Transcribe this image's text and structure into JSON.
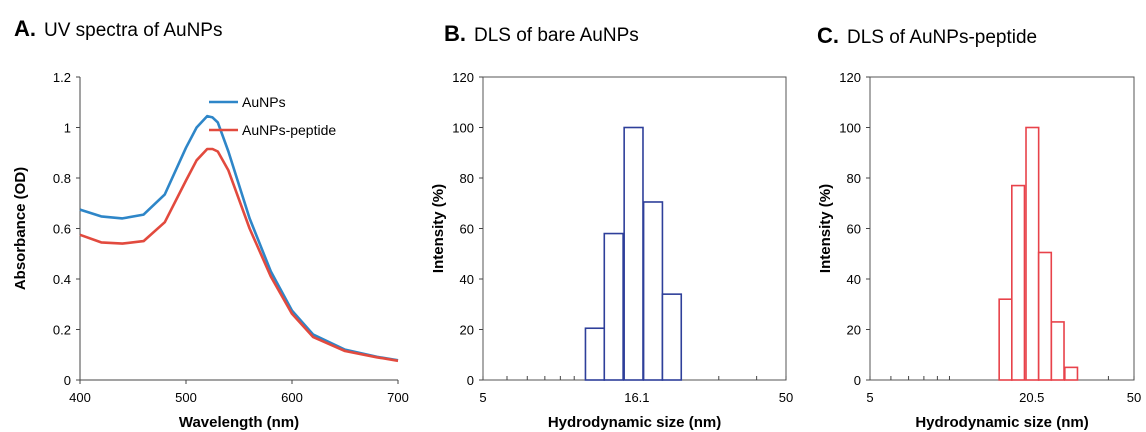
{
  "chart_data": [
    {
      "type": "line",
      "panel_letter": "A.",
      "title": "UV spectra of AuNPs",
      "xlabel": "Wavelength (nm)",
      "ylabel": "Absorbance (OD)",
      "xlim": [
        400,
        700
      ],
      "ylim": [
        0,
        1.2
      ],
      "xticks": [
        400,
        500,
        600,
        700
      ],
      "yticks": [
        0,
        0.2,
        0.4,
        0.6,
        0.8,
        1,
        1.2
      ],
      "grid": false,
      "legend_position": "top-right",
      "series": [
        {
          "name": "AuNPs",
          "color": "#2E86C8",
          "x": [
            400,
            420,
            440,
            460,
            480,
            500,
            510,
            520,
            525,
            530,
            540,
            560,
            580,
            600,
            620,
            650,
            680,
            700
          ],
          "y": [
            0.675,
            0.648,
            0.64,
            0.655,
            0.735,
            0.92,
            1.0,
            1.045,
            1.04,
            1.02,
            0.905,
            0.64,
            0.43,
            0.275,
            0.18,
            0.12,
            0.092,
            0.078
          ]
        },
        {
          "name": "AuNPs-peptide",
          "color": "#E24A3E",
          "x": [
            400,
            420,
            440,
            460,
            480,
            500,
            510,
            520,
            525,
            530,
            540,
            560,
            580,
            600,
            620,
            650,
            680,
            700
          ],
          "y": [
            0.575,
            0.545,
            0.54,
            0.55,
            0.625,
            0.79,
            0.87,
            0.915,
            0.915,
            0.905,
            0.83,
            0.6,
            0.41,
            0.262,
            0.17,
            0.115,
            0.09,
            0.076
          ]
        }
      ]
    },
    {
      "type": "bar",
      "panel_letter": "B.",
      "title": "DLS of bare AuNPs",
      "xlabel": "Hydrodynamic size (nm)",
      "ylabel": "Intensity (%)",
      "xscale": "log",
      "xlim": [
        5,
        50
      ],
      "ylim": [
        0,
        120
      ],
      "xtick_labels": [
        "5",
        "16.1",
        "50"
      ],
      "yticks": [
        0,
        20,
        40,
        60,
        80,
        100,
        120
      ],
      "color": "#2E3F9A",
      "categories": [
        "11.7",
        "13.5",
        "15.7",
        "18.2",
        "21.0"
      ],
      "values": [
        20.5,
        58,
        100,
        70.5,
        34
      ]
    },
    {
      "type": "bar",
      "panel_letter": "C.",
      "title": "DLS of AuNPs-peptide",
      "xlabel": "Hydrodynamic size (nm)",
      "ylabel": "Intensity (%)",
      "xscale": "log",
      "xlim": [
        5,
        50
      ],
      "ylim": [
        0,
        120
      ],
      "xtick_labels": [
        "5",
        "20.5",
        "50"
      ],
      "yticks": [
        0,
        20,
        40,
        60,
        80,
        100,
        120
      ],
      "color": "#E8424A",
      "categories": [
        "16.3",
        "18.2",
        "20.6",
        "23.0",
        "25.7",
        "28.9"
      ],
      "values": [
        32,
        77,
        100,
        50.5,
        23,
        5
      ]
    }
  ]
}
